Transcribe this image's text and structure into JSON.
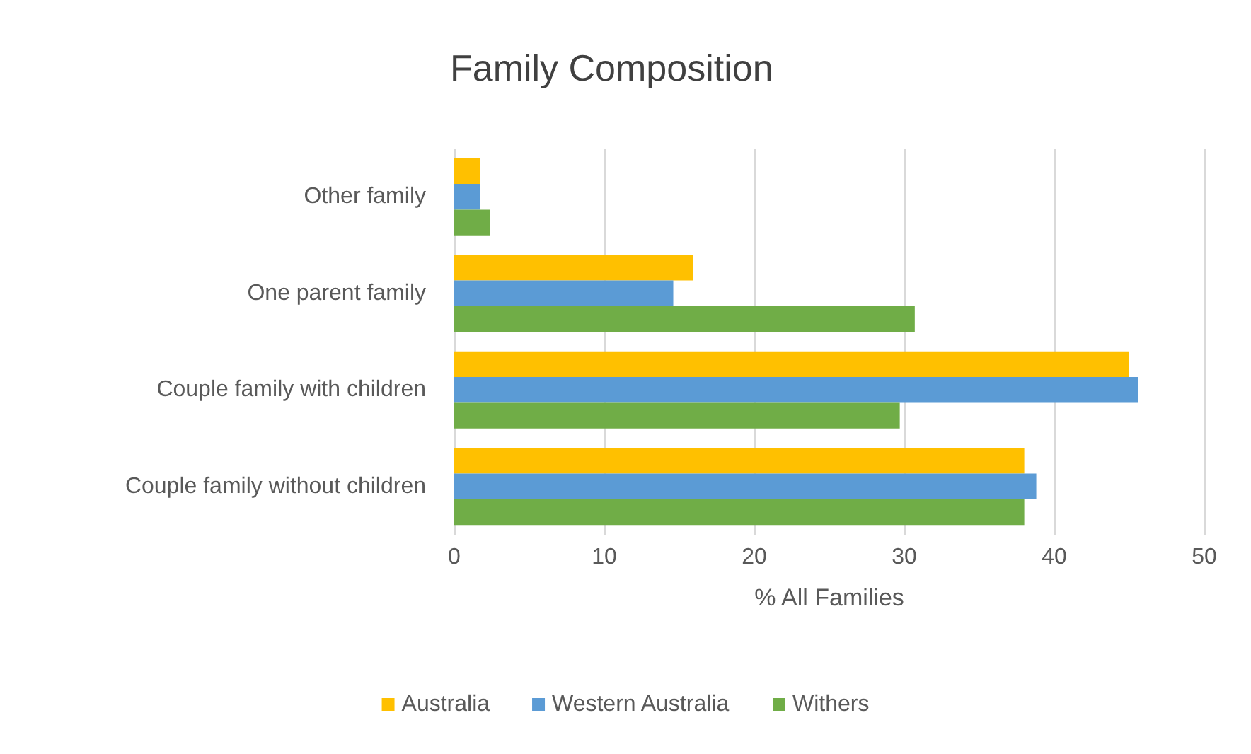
{
  "chart_data": {
    "type": "bar",
    "orientation": "horizontal",
    "title": "Family Composition",
    "xlabel": "% All Families",
    "categories": [
      "Other family",
      "One parent family",
      "Couple family with children",
      "Couple family without children"
    ],
    "series": [
      {
        "name": "Australia",
        "color": "#ffc000",
        "values": [
          1.7,
          15.9,
          45.0,
          38.0
        ]
      },
      {
        "name": "Western Australia",
        "color": "#5b9bd5",
        "values": [
          1.7,
          14.6,
          45.6,
          38.8
        ]
      },
      {
        "name": "Withers",
        "color": "#70ad47",
        "values": [
          2.4,
          30.7,
          29.7,
          38.0
        ]
      }
    ],
    "xlim": [
      0,
      50
    ],
    "xticks": [
      0,
      10,
      20,
      30,
      40,
      50
    ],
    "grid": "x",
    "legend": "bottom"
  }
}
